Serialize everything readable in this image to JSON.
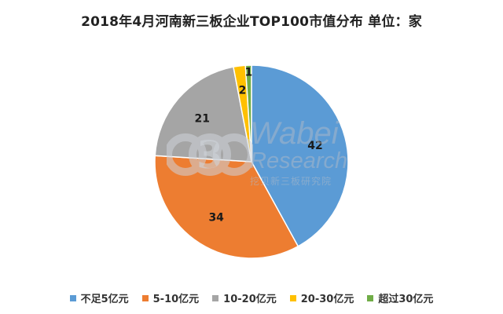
{
  "chart_data": {
    "type": "pie",
    "title": "2018年4月河南新三板企业TOP100市值分布  单位：家",
    "categories": [
      "不足5亿元",
      "5-10亿元",
      "10-20亿元",
      "20-30亿元",
      "超过30亿元"
    ],
    "values": [
      42,
      34,
      21,
      2,
      1
    ],
    "colors": [
      "#5B9BD5",
      "#ED7D31",
      "#A5A5A5",
      "#FFC000",
      "#70AD47"
    ],
    "legend_position": "bottom",
    "data_labels": true
  },
  "watermark": {
    "brand": "Wabei",
    "subtitle": "Research",
    "tagline": "挖贝新三板研究院"
  }
}
